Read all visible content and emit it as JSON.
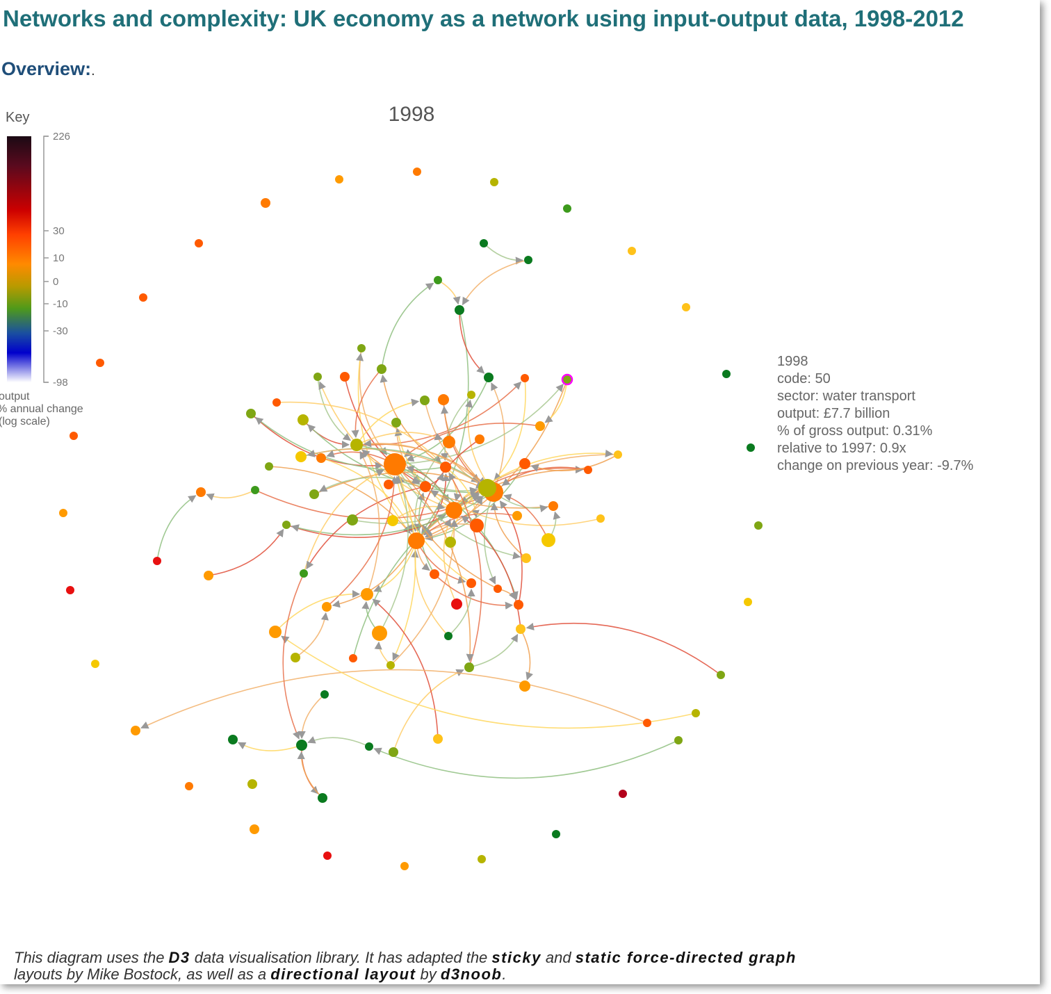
{
  "header": {
    "title": "Networks and complexity: UK economy as a network using input-output data, 1998-2012",
    "overview_label": "Overview:",
    "overview_dot": "."
  },
  "key": {
    "title": "Key",
    "ticks": [
      "226",
      "30",
      "10",
      "0",
      "-10",
      "-30",
      "-98"
    ],
    "caption": [
      "output",
      "% annual change",
      "(log scale)"
    ],
    "gradient_colors": [
      "#1b0a14",
      "#5a0a1e",
      "#cc0000",
      "#ff4000",
      "#ff8a00",
      "#b89a00",
      "#4f9a1a",
      "#1a4fa0",
      "#0000cc",
      "#ffffff"
    ]
  },
  "graph": {
    "year": "1998",
    "highlight_color": "#ff00ff",
    "edge_color": "#999999"
  },
  "info_panel": {
    "year": "1998",
    "code": "code: 50",
    "sector": "sector: water transport",
    "output": "output: £7.7 billion",
    "share": "% of gross output: 0.31%",
    "relative": "relative to 1997: 0.9x",
    "change": "change on previous year: -9.7%"
  },
  "footer": {
    "t1": "This diagram uses the ",
    "b1": "D3",
    "t2": " data visualisation library. It has adapted the ",
    "b2": "sticky",
    "t3": " and ",
    "b3": "static force-directed graph",
    "t4": "layouts by Mike Bostock, as well as a ",
    "b4": "directional layout",
    "t5": " by ",
    "b5": "d3noob",
    "t6": "."
  }
}
